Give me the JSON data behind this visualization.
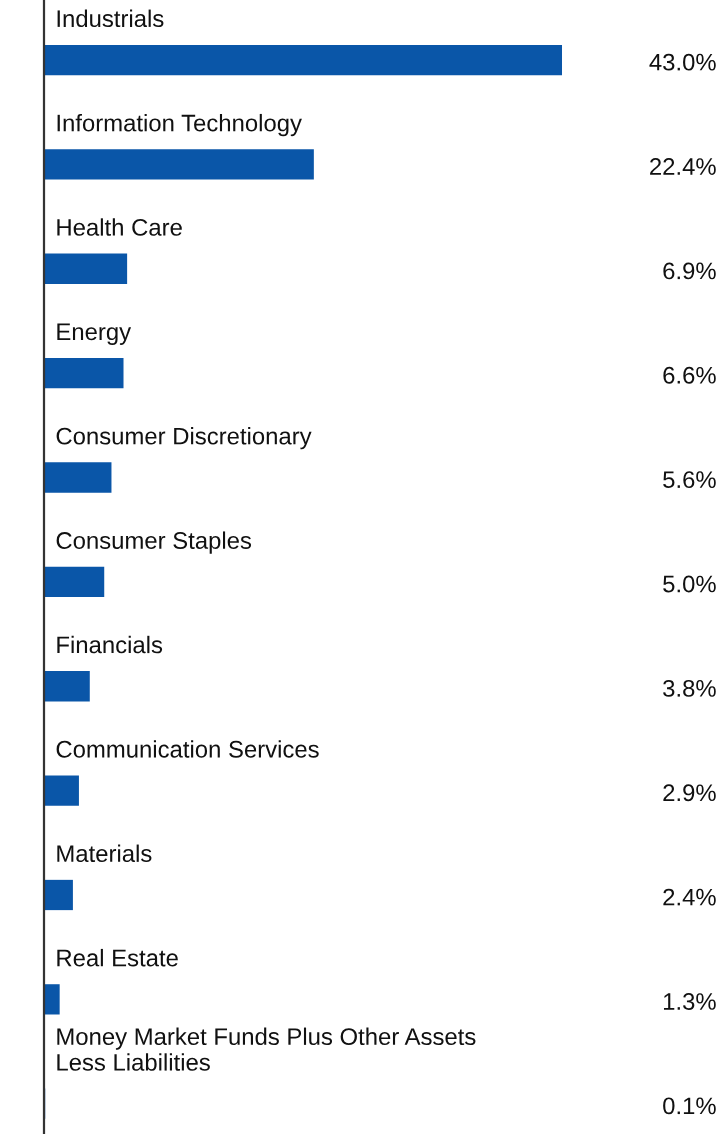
{
  "chart_data": {
    "type": "bar",
    "orientation": "horizontal",
    "categories": [
      "Industrials",
      "Information Technology",
      "Health Care",
      "Energy",
      "Consumer Discretionary",
      "Consumer Staples",
      "Financials",
      "Communication Services",
      "Materials",
      "Real Estate",
      "Money Market Funds Plus Other Assets\nLess Liabilities"
    ],
    "values": [
      43.0,
      22.4,
      6.9,
      6.6,
      5.6,
      5.0,
      3.8,
      2.9,
      2.4,
      1.3,
      0.1
    ],
    "value_labels": [
      "43.0%",
      "22.4%",
      "6.9%",
      "6.6%",
      "5.6%",
      "5.0%",
      "3.8%",
      "2.9%",
      "2.4%",
      "1.3%",
      "0.1%"
    ],
    "color": "#0a56a8"
  }
}
